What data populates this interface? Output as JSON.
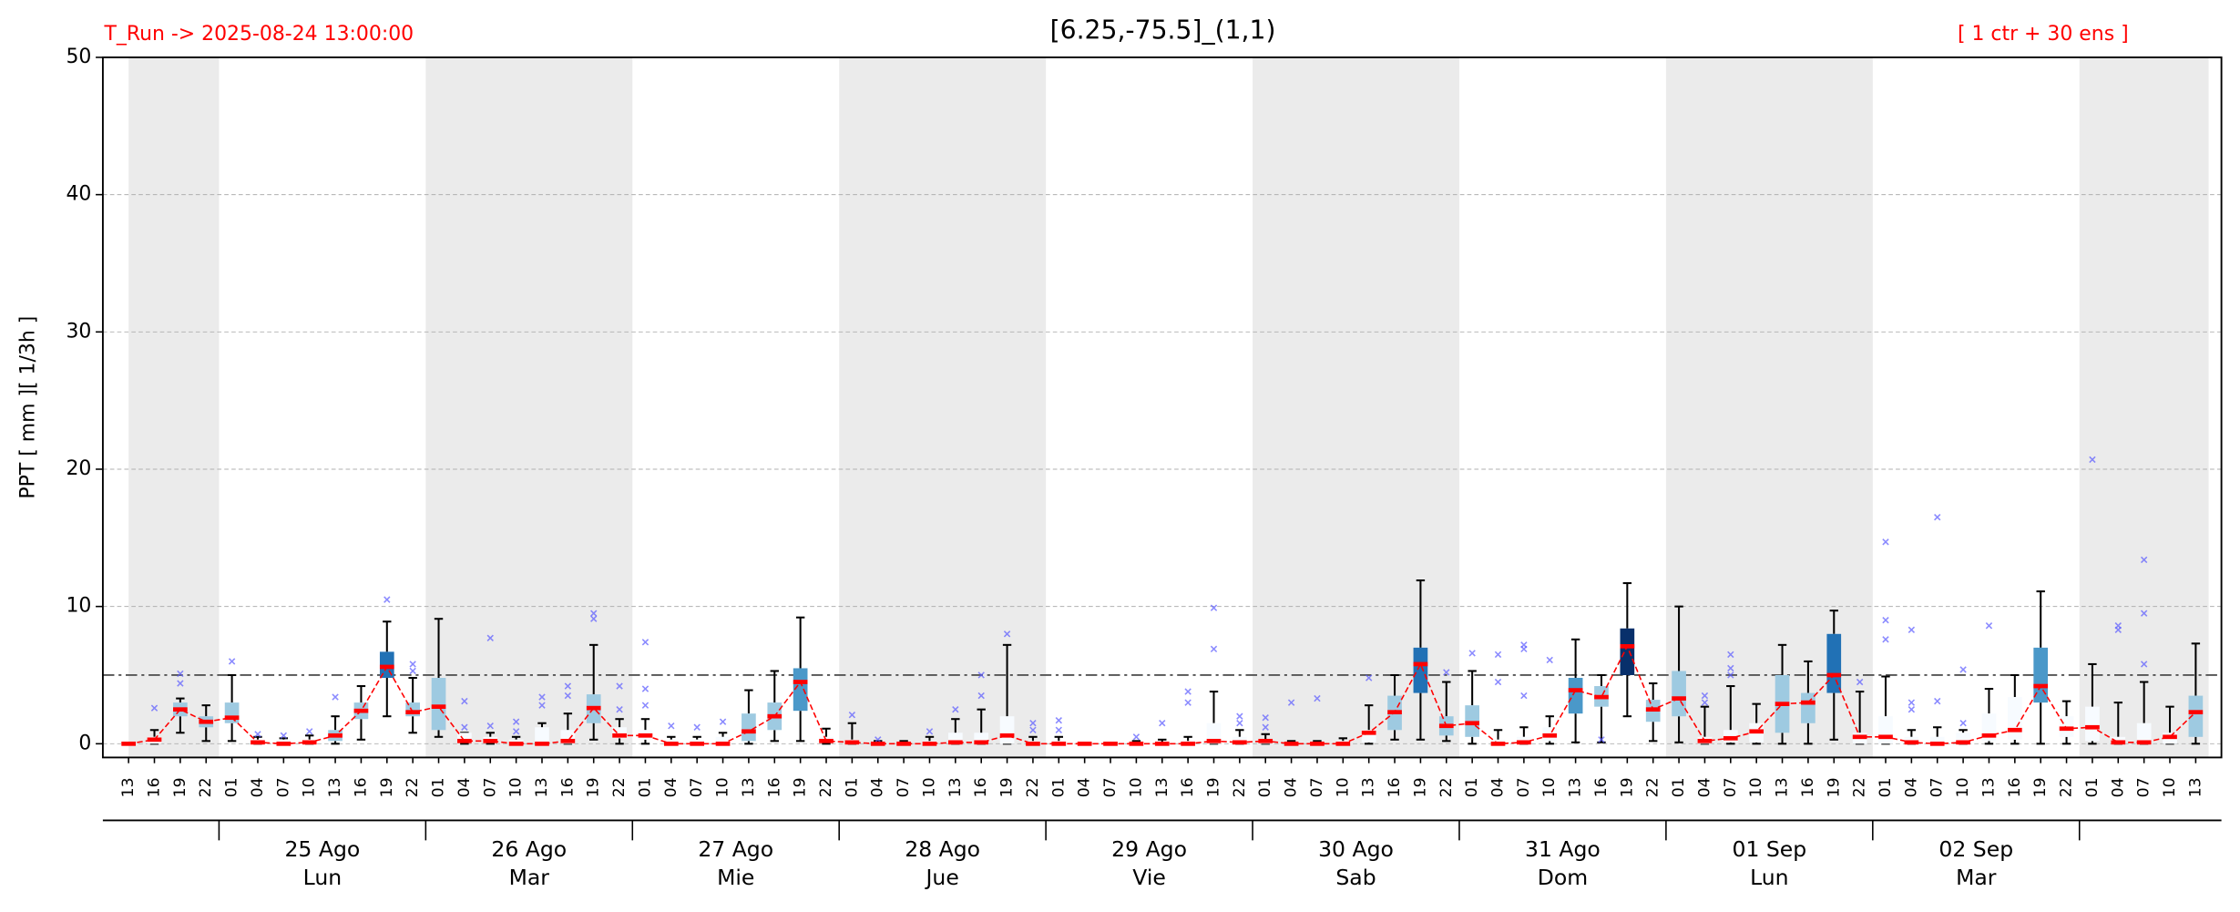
{
  "chart_data": {
    "type": "box",
    "title": "[6.25,-75.5]_(1,1)",
    "run_label": "T_Run -> 2025-08-24  13:00:00",
    "members_label": "[ 1 ctr + 30 ens ]",
    "y_label": "PPT  [ mm ][ 1/3h ]",
    "ylim": [
      -1,
      50
    ],
    "yticks": [
      0,
      10,
      20,
      30,
      40,
      50
    ],
    "grid": true,
    "threshold": 5,
    "categories": [
      "13",
      "16",
      "19",
      "22",
      "01",
      "04",
      "07",
      "10",
      "13",
      "16",
      "19",
      "22",
      "01",
      "04",
      "07",
      "10",
      "13",
      "16",
      "19",
      "22",
      "01",
      "04",
      "07",
      "10",
      "13",
      "16",
      "19",
      "22",
      "01",
      "04",
      "07",
      "10",
      "13",
      "16",
      "19",
      "22",
      "01",
      "04",
      "07",
      "10",
      "13",
      "16",
      "19",
      "22",
      "01",
      "04",
      "07",
      "10",
      "13",
      "16",
      "19",
      "22",
      "01",
      "04",
      "07",
      "10",
      "13",
      "16",
      "19",
      "22",
      "01",
      "04",
      "07",
      "10",
      "13",
      "16",
      "19",
      "22",
      "01",
      "04",
      "07",
      "10",
      "13",
      "16",
      "19",
      "22",
      "01",
      "04",
      "07",
      "10",
      "13"
    ],
    "days": [
      {
        "date": "25 Ago",
        "weekday": "Lun"
      },
      {
        "date": "26 Ago",
        "weekday": "Mar"
      },
      {
        "date": "27 Ago",
        "weekday": "Mie"
      },
      {
        "date": "28 Ago",
        "weekday": "Jue"
      },
      {
        "date": "29 Ago",
        "weekday": "Vie"
      },
      {
        "date": "30 Ago",
        "weekday": "Sab"
      },
      {
        "date": "31 Ago",
        "weekday": "Dom"
      },
      {
        "date": "01 Sep",
        "weekday": "Lun"
      },
      {
        "date": "02 Sep",
        "weekday": "Mar"
      }
    ],
    "low": [
      0,
      0,
      0.8,
      0.2,
      0.2,
      0,
      0,
      0,
      0,
      0.3,
      2.0,
      0.8,
      0.5,
      0,
      0,
      0,
      0,
      0,
      0.3,
      0,
      0,
      0,
      0,
      0,
      0,
      0.2,
      0.2,
      0,
      0,
      0,
      0,
      0,
      0,
      0,
      0,
      0,
      0,
      0,
      0,
      0,
      0,
      0,
      0,
      0,
      0,
      0,
      0,
      0,
      0,
      0.3,
      0.3,
      0.2,
      0,
      0,
      0,
      0,
      0.1,
      0.1,
      2.0,
      0.2,
      0.1,
      0,
      0,
      0,
      0,
      0,
      0.3,
      0,
      0,
      0,
      0,
      0,
      0,
      0,
      0,
      0,
      0,
      0,
      0,
      0,
      0
    ],
    "q1": [
      0,
      0,
      2.0,
      1.2,
      1.5,
      0,
      0,
      0,
      0.2,
      1.8,
      4.8,
      2.0,
      1.0,
      0.2,
      0.1,
      0,
      0,
      0,
      1.5,
      0.4,
      0.3,
      0,
      0,
      0,
      0.2,
      1.0,
      2.4,
      0.1,
      0,
      0,
      0,
      0,
      0,
      0,
      0,
      0,
      0,
      0,
      0,
      0,
      0,
      0,
      0,
      0,
      0,
      0,
      0,
      0,
      0.1,
      1.0,
      3.7,
      0.6,
      0.5,
      0,
      0,
      0.2,
      2.2,
      2.7,
      5.0,
      1.6,
      2.0,
      0,
      0.1,
      0.1,
      0.8,
      1.5,
      3.7,
      0,
      0,
      0,
      0,
      0,
      0.2,
      0.3,
      3.0,
      0.5,
      0.2,
      0,
      0,
      0,
      0.5
    ],
    "q3": [
      0,
      0.5,
      3.0,
      2.0,
      3.0,
      0.3,
      0.3,
      0.3,
      1.0,
      3.0,
      6.7,
      3.0,
      4.8,
      0.8,
      0.5,
      0.3,
      1.2,
      1.0,
      3.6,
      1.2,
      1.0,
      0.3,
      0.3,
      0.5,
      2.2,
      3.0,
      5.5,
      0.5,
      0.3,
      0.1,
      0.1,
      0.2,
      0.8,
      0.8,
      2.0,
      0.2,
      0.2,
      0,
      0,
      0.1,
      0.1,
      0.2,
      1.5,
      0.5,
      0.3,
      0.1,
      0.1,
      0.2,
      1.0,
      3.5,
      7.0,
      2.0,
      2.8,
      0.3,
      0.5,
      1.2,
      4.8,
      4.2,
      8.4,
      3.2,
      5.3,
      0.5,
      1.0,
      1.5,
      5.0,
      3.7,
      8.0,
      0.8,
      2.0,
      0.5,
      0.5,
      0.8,
      2.2,
      3.4,
      7.0,
      2.0,
      2.7,
      0.5,
      1.5,
      0.8,
      3.5
    ],
    "high": [
      0,
      1.0,
      3.3,
      2.8,
      5.0,
      0.5,
      0.4,
      0.6,
      2.0,
      4.2,
      8.9,
      4.8,
      9.1,
      0.8,
      0.8,
      0.5,
      1.5,
      2.2,
      7.2,
      1.8,
      1.8,
      0.5,
      0.5,
      0.8,
      3.9,
      5.3,
      9.2,
      1.1,
      1.5,
      0.2,
      0.2,
      0.5,
      1.8,
      2.5,
      7.2,
      0.5,
      0.5,
      0,
      0,
      0.2,
      0.3,
      0.5,
      3.8,
      1.0,
      0.7,
      0.2,
      0.2,
      0.4,
      2.8,
      5.0,
      11.9,
      4.5,
      5.3,
      1.0,
      1.2,
      2.0,
      7.6,
      5.0,
      11.7,
      4.4,
      10.0,
      2.7,
      4.2,
      2.9,
      7.2,
      6.0,
      9.7,
      3.8,
      4.9,
      1.0,
      1.2,
      1.0,
      4.0,
      5.0,
      11.1,
      3.1,
      5.8,
      3.0,
      4.5,
      2.7,
      7.3
    ],
    "ctr": [
      0,
      0.3,
      2.5,
      1.6,
      1.9,
      0.1,
      0,
      0.1,
      0.6,
      2.4,
      5.6,
      2.3,
      2.7,
      0.2,
      0.2,
      0,
      0,
      0.2,
      2.6,
      0.6,
      0.6,
      0,
      0,
      0,
      0.9,
      2.0,
      4.5,
      0.2,
      0.1,
      0,
      0,
      0,
      0.1,
      0.1,
      0.6,
      0,
      0,
      0,
      0,
      0,
      0,
      0,
      0.2,
      0.1,
      0.2,
      0,
      0,
      0,
      0.8,
      2.3,
      5.8,
      1.3,
      1.5,
      0,
      0.1,
      0.6,
      3.9,
      3.4,
      7.1,
      2.5,
      3.3,
      0.2,
      0.4,
      0.9,
      2.9,
      3.0,
      5.0,
      0.5,
      0.5,
      0.1,
      0,
      0.1,
      0.6,
      1.0,
      4.2,
      1.1,
      1.2,
      0.1,
      0.1,
      0.5,
      2.3
    ],
    "outliers": [
      [],
      [
        2.6
      ],
      [
        4.4,
        5.1
      ],
      [],
      [
        6.0
      ],
      [
        0.7
      ],
      [
        0.6
      ],
      [
        0.9
      ],
      [
        3.4
      ],
      [],
      [
        10.5
      ],
      [
        5.3,
        5.8
      ],
      [],
      [
        1.2,
        3.1
      ],
      [
        1.3,
        7.7
      ],
      [
        0.9,
        1.6
      ],
      [
        2.8,
        3.4
      ],
      [
        3.5,
        4.2
      ],
      [
        9.1,
        9.5
      ],
      [
        2.5,
        4.2
      ],
      [
        2.8,
        4.0,
        7.4
      ],
      [
        1.3
      ],
      [
        1.2
      ],
      [
        1.6
      ],
      [],
      [],
      [],
      [],
      [
        2.1
      ],
      [
        0.3
      ],
      [],
      [
        0.9
      ],
      [
        2.5
      ],
      [
        3.5,
        5.0
      ],
      [
        8.0
      ],
      [
        1.0,
        1.5
      ],
      [
        1.0,
        1.7
      ],
      [],
      [],
      [
        0.5
      ],
      [
        1.5
      ],
      [
        3.0,
        3.8
      ],
      [
        6.9,
        9.9
      ],
      [
        1.5,
        2.0
      ],
      [
        1.2,
        1.9
      ],
      [
        3.0
      ],
      [
        3.3
      ],
      [],
      [
        4.8
      ],
      [],
      [],
      [
        5.2
      ],
      [
        6.6
      ],
      [
        4.5,
        6.5
      ],
      [
        3.5,
        6.9,
        7.2
      ],
      [
        6.1
      ],
      [],
      [
        0.3
      ],
      [],
      [],
      [],
      [
        3.0,
        3.5
      ],
      [
        5.0,
        5.5,
        6.5
      ],
      [],
      [],
      [],
      [],
      [
        4.5
      ],
      [
        7.6,
        9.0,
        14.7
      ],
      [
        2.5,
        3.0,
        8.3
      ],
      [
        3.1,
        16.5
      ],
      [
        1.5,
        5.4
      ],
      [
        8.6
      ],
      [],
      [],
      [],
      [
        20.7
      ],
      [
        8.3,
        8.6
      ],
      [
        5.8,
        9.5,
        13.4
      ],
      [],
      []
    ],
    "box_colors": [
      "#f7fbff",
      "#f7fbff",
      "#9ecae1",
      "#9ecae1",
      "#9ecae1",
      "#f7fbff",
      "#f7fbff",
      "#f7fbff",
      "#9ecae1",
      "#9ecae1",
      "#2171b5",
      "#9ecae1",
      "#9ecae1",
      "#f7fbff",
      "#f7fbff",
      "#f7fbff",
      "#f7fbff",
      "#f7fbff",
      "#9ecae1",
      "#f7fbff",
      "#f7fbff",
      "#f7fbff",
      "#f7fbff",
      "#f7fbff",
      "#9ecae1",
      "#9ecae1",
      "#4a98c9",
      "#f7fbff",
      "#f7fbff",
      "#f7fbff",
      "#f7fbff",
      "#f7fbff",
      "#f7fbff",
      "#f7fbff",
      "#f7fbff",
      "#f7fbff",
      "#f7fbff",
      "#f7fbff",
      "#f7fbff",
      "#f7fbff",
      "#f7fbff",
      "#f7fbff",
      "#f7fbff",
      "#f7fbff",
      "#f7fbff",
      "#f7fbff",
      "#f7fbff",
      "#f7fbff",
      "#f7fbff",
      "#9ecae1",
      "#2171b5",
      "#9ecae1",
      "#9ecae1",
      "#f7fbff",
      "#f7fbff",
      "#f7fbff",
      "#4a98c9",
      "#9ecae1",
      "#08306b",
      "#9ecae1",
      "#9ecae1",
      "#f7fbff",
      "#f7fbff",
      "#f7fbff",
      "#9ecae1",
      "#9ecae1",
      "#2171b5",
      "#f7fbff",
      "#f7fbff",
      "#f7fbff",
      "#f7fbff",
      "#f7fbff",
      "#f7fbff",
      "#f7fbff",
      "#4a98c9",
      "#f7fbff",
      "#f7fbff",
      "#f7fbff",
      "#f7fbff",
      "#f7fbff",
      "#9ecae1"
    ],
    "ctr_color": "#ff0000",
    "outlier_color": "#5a5aff",
    "shade_color": "#ebebeb"
  }
}
